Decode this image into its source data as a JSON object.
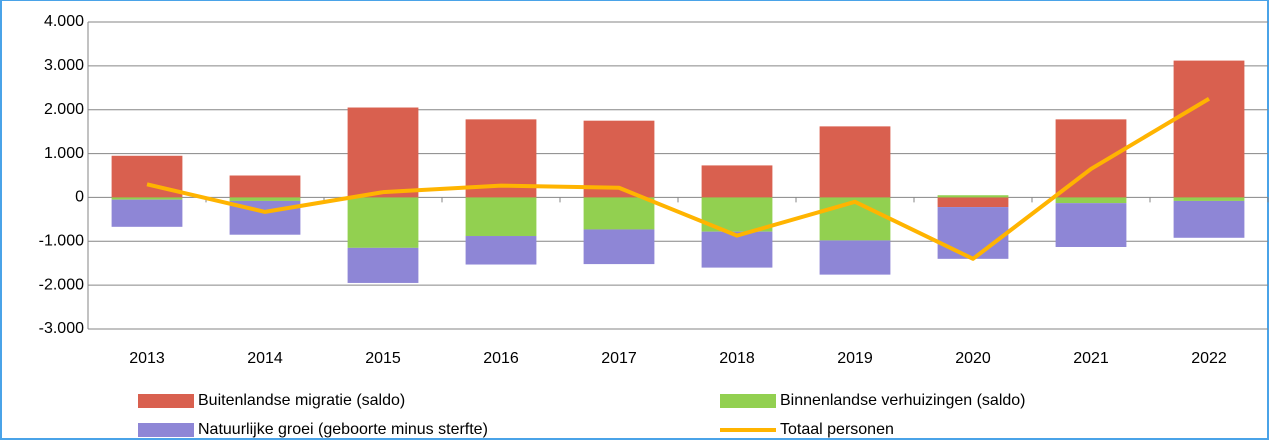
{
  "chart_data": {
    "type": "bar",
    "stacked": true,
    "categories": [
      "2013",
      "2014",
      "2015",
      "2016",
      "2017",
      "2018",
      "2019",
      "2020",
      "2021",
      "2022"
    ],
    "series": [
      {
        "name": "Buitenlandse migratie (saldo)",
        "color": "#d9604f",
        "values": [
          950,
          500,
          2050,
          1780,
          1750,
          730,
          1620,
          -220,
          1780,
          3120
        ]
      },
      {
        "name": "Binnenlandse verhuizingen (saldo)",
        "color": "#92d050",
        "values": [
          -50,
          -80,
          -1150,
          -880,
          -730,
          -780,
          -980,
          50,
          -130,
          -80
        ]
      },
      {
        "name": "Natuurlijke groei (geboorte minus sterfte)",
        "color": "#8e86d6",
        "values": [
          -620,
          -770,
          -800,
          -650,
          -790,
          -820,
          -780,
          -1180,
          -1000,
          -840
        ]
      },
      {
        "name": "Totaal personen",
        "color": "#ffb400",
        "type": "line",
        "values": [
          300,
          -330,
          120,
          270,
          220,
          -870,
          -100,
          -1400,
          650,
          2250
        ]
      }
    ],
    "ylim": [
      -3000,
      4000
    ],
    "yticks": [
      {
        "value": -3000,
        "label": "-3.000"
      },
      {
        "value": -2000,
        "label": "-2.000"
      },
      {
        "value": -1000,
        "label": "-1.000"
      },
      0,
      {
        "value": 1000,
        "label": "1.000"
      },
      {
        "value": 2000,
        "label": "2.000"
      },
      {
        "value": 3000,
        "label": "3.000"
      },
      {
        "value": 4000,
        "label": "4.000"
      }
    ],
    "grid": true,
    "legend": "bottom"
  }
}
